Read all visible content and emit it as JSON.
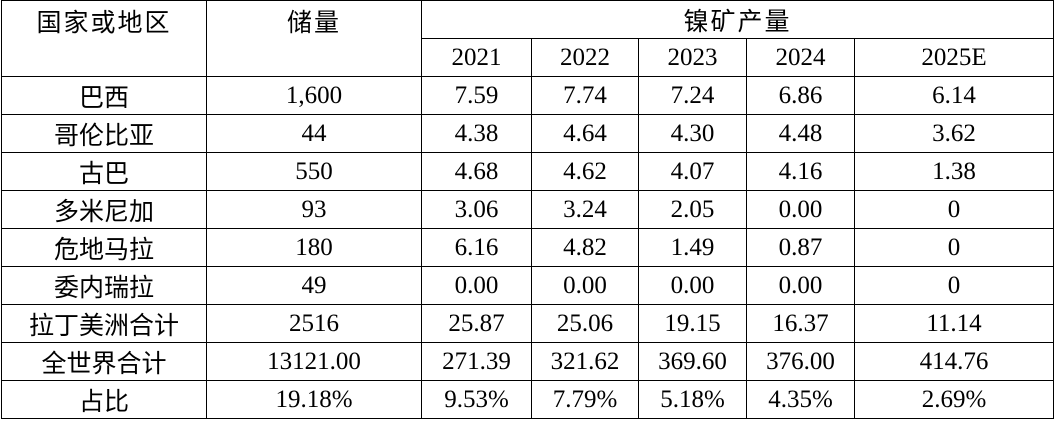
{
  "table": {
    "headers": [
      "国家或地区",
      "储量",
      "镍矿产量"
    ],
    "years": [
      "2021",
      "2022",
      "2023",
      "2024",
      "2025E"
    ],
    "rows": [
      [
        "巴西",
        "1,600",
        "7.59",
        "7.74",
        "7.24",
        "6.86",
        "6.14"
      ],
      [
        "哥伦比亚",
        "44",
        "4.38",
        "4.64",
        "4.30",
        "4.48",
        "3.62"
      ],
      [
        "古巴",
        "550",
        "4.68",
        "4.62",
        "4.07",
        "4.16",
        "1.38"
      ],
      [
        "多米尼加",
        "93",
        "3.06",
        "3.24",
        "2.05",
        "0.00",
        "0"
      ],
      [
        "危地马拉",
        "180",
        "6.16",
        "4.82",
        "1.49",
        "0.87",
        "0"
      ],
      [
        "委内瑞拉",
        "49",
        "0.00",
        "0.00",
        "0.00",
        "0.00",
        "0"
      ],
      [
        "拉丁美洲合计",
        "2516",
        "25.87",
        "25.06",
        "19.15",
        "16.37",
        "11.14"
      ],
      [
        "全世界合计",
        "13121.00",
        "271.39",
        "321.62",
        "369.60",
        "376.00",
        "414.76"
      ],
      [
        "占比",
        "19.18%",
        "9.53%",
        "7.79%",
        "5.18%",
        "4.35%",
        "2.69%"
      ]
    ]
  }
}
